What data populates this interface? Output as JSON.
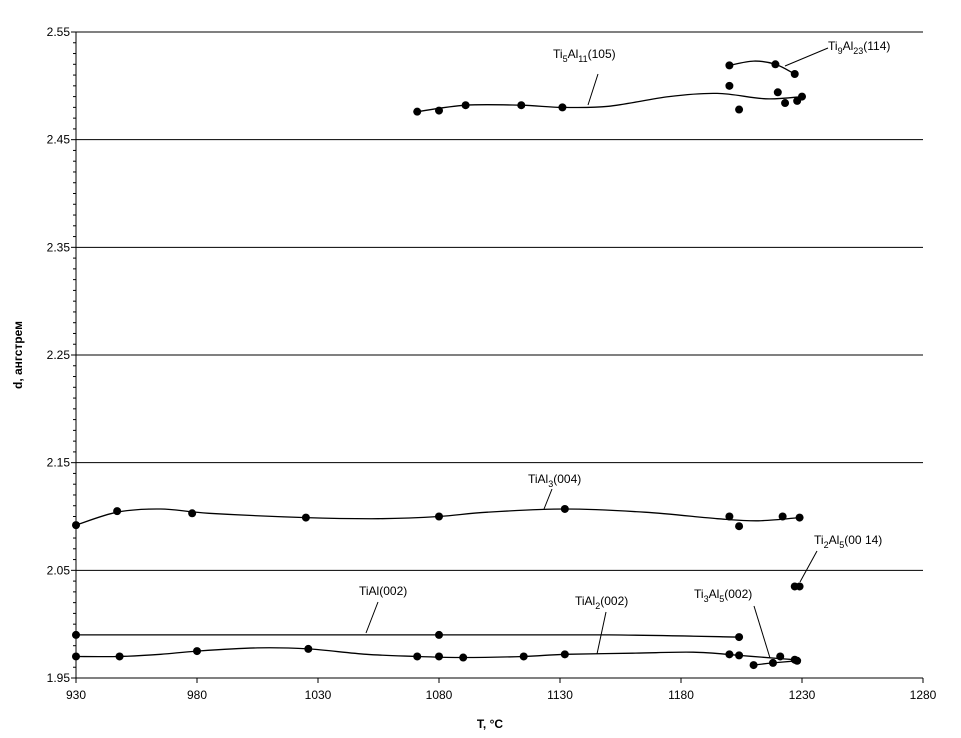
{
  "chart_data": {
    "type": "scatter",
    "xlabel": "T, °C",
    "ylabel": "d, ангстрем",
    "xlim": [
      930,
      1280
    ],
    "ylim": [
      1.95,
      2.55
    ],
    "x_ticks": [
      "930",
      "980",
      "1030",
      "1080",
      "1130",
      "1180",
      "1230",
      "1280"
    ],
    "y_ticks": [
      "1.95",
      "2.05",
      "2.15",
      "2.25",
      "2.35",
      "2.45",
      "2.55"
    ],
    "grid": "horizontal major",
    "legend": "none",
    "series": [
      {
        "label_parts": [
          [
            "Ti",
            ""
          ],
          [
            "5",
            "sub"
          ],
          [
            "Al",
            ""
          ],
          [
            "11",
            "sub"
          ],
          [
            "(105)",
            ""
          ]
        ],
        "points": [
          [
            1071,
            2.476
          ],
          [
            1080,
            2.477
          ],
          [
            1091,
            2.482
          ],
          [
            1114,
            2.482
          ],
          [
            1131,
            2.48
          ],
          [
            1200,
            2.5
          ],
          [
            1204,
            2.478
          ],
          [
            1220,
            2.494
          ],
          [
            1223,
            2.484
          ],
          [
            1228,
            2.486
          ],
          [
            1230,
            2.49
          ]
        ],
        "curve": [
          [
            1071,
            2.476
          ],
          [
            1091,
            2.482
          ],
          [
            1114,
            2.482
          ],
          [
            1131,
            2.48
          ],
          [
            1150,
            2.481
          ],
          [
            1175,
            2.49
          ],
          [
            1195,
            2.493
          ],
          [
            1215,
            2.488
          ],
          [
            1230,
            2.49
          ]
        ]
      },
      {
        "label_parts": [
          [
            "Ti",
            ""
          ],
          [
            "9",
            "sub"
          ],
          [
            "Al",
            ""
          ],
          [
            "23",
            "sub"
          ],
          [
            "(114)",
            ""
          ]
        ],
        "points": [
          [
            1200,
            2.519
          ],
          [
            1219,
            2.52
          ],
          [
            1227,
            2.511
          ]
        ],
        "curve": [
          [
            1200,
            2.519
          ],
          [
            1210,
            2.523
          ],
          [
            1219,
            2.52
          ],
          [
            1227,
            2.511
          ]
        ]
      },
      {
        "label_parts": [
          [
            "TiAl",
            ""
          ],
          [
            "3",
            "sub"
          ],
          [
            "(004)",
            ""
          ]
        ],
        "points": [
          [
            930,
            2.092
          ],
          [
            947,
            2.105
          ],
          [
            978,
            2.103
          ],
          [
            1025,
            2.099
          ],
          [
            1080,
            2.1
          ],
          [
            1132,
            2.107
          ],
          [
            1200,
            2.1
          ],
          [
            1204,
            2.091
          ],
          [
            1222,
            2.1
          ],
          [
            1229,
            2.099
          ]
        ],
        "curve": [
          [
            930,
            2.092
          ],
          [
            947,
            2.104
          ],
          [
            965,
            2.107
          ],
          [
            985,
            2.103
          ],
          [
            1025,
            2.099
          ],
          [
            1055,
            2.098
          ],
          [
            1080,
            2.1
          ],
          [
            1100,
            2.104
          ],
          [
            1132,
            2.107
          ],
          [
            1165,
            2.104
          ],
          [
            1195,
            2.098
          ],
          [
            1212,
            2.096
          ],
          [
            1229,
            2.099
          ]
        ]
      },
      {
        "label_parts": [
          [
            "Ti",
            ""
          ],
          [
            "2",
            "sub"
          ],
          [
            "Al",
            ""
          ],
          [
            "5",
            "sub"
          ],
          [
            "(00 14)",
            ""
          ]
        ],
        "points": [
          [
            1227,
            2.035
          ],
          [
            1229,
            2.035
          ]
        ],
        "curve": []
      },
      {
        "label_parts": [
          [
            "TiAl(002)",
            ""
          ]
        ],
        "points": [
          [
            930,
            1.99
          ],
          [
            1080,
            1.99
          ],
          [
            1204,
            1.988
          ]
        ],
        "curve": [
          [
            930,
            1.99
          ],
          [
            1000,
            1.99
          ],
          [
            1080,
            1.99
          ],
          [
            1150,
            1.99
          ],
          [
            1204,
            1.988
          ]
        ]
      },
      {
        "label_parts": [
          [
            "TiAl",
            ""
          ],
          [
            "2",
            "sub"
          ],
          [
            "(002)",
            ""
          ]
        ],
        "points": [
          [
            930,
            1.97
          ],
          [
            948,
            1.97
          ],
          [
            980,
            1.975
          ],
          [
            1026,
            1.977
          ],
          [
            1071,
            1.97
          ],
          [
            1080,
            1.97
          ],
          [
            1090,
            1.969
          ],
          [
            1115,
            1.97
          ],
          [
            1132,
            1.972
          ],
          [
            1200,
            1.972
          ],
          [
            1204,
            1.971
          ],
          [
            1221,
            1.97
          ],
          [
            1227,
            1.967
          ]
        ],
        "curve": [
          [
            930,
            1.97
          ],
          [
            948,
            1.97
          ],
          [
            965,
            1.972
          ],
          [
            980,
            1.975
          ],
          [
            1005,
            1.978
          ],
          [
            1026,
            1.977
          ],
          [
            1050,
            1.972
          ],
          [
            1071,
            1.97
          ],
          [
            1090,
            1.969
          ],
          [
            1115,
            1.97
          ],
          [
            1132,
            1.972
          ],
          [
            1160,
            1.973
          ],
          [
            1185,
            1.974
          ],
          [
            1204,
            1.971
          ],
          [
            1221,
            1.968
          ],
          [
            1227,
            1.967
          ]
        ]
      },
      {
        "label_parts": [
          [
            "Ti",
            ""
          ],
          [
            "3",
            "sub"
          ],
          [
            "Al",
            ""
          ],
          [
            "5",
            "sub"
          ],
          [
            "(002)",
            ""
          ]
        ],
        "points": [
          [
            1210,
            1.962
          ],
          [
            1218,
            1.964
          ],
          [
            1228,
            1.966
          ]
        ],
        "curve": [
          [
            1210,
            1.962
          ],
          [
            1218,
            1.964
          ],
          [
            1228,
            1.966
          ]
        ]
      }
    ]
  }
}
